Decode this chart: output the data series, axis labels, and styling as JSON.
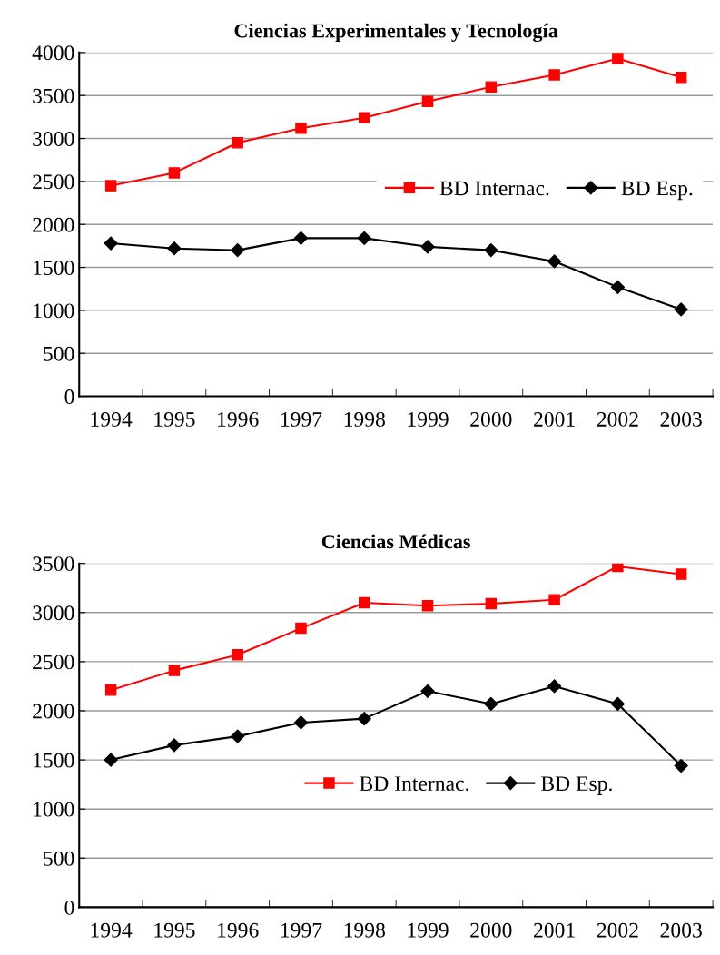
{
  "chart_data": [
    {
      "type": "line",
      "title": "Ciencias Experimentales y Tecnología",
      "categories": [
        "1994",
        "1995",
        "1996",
        "1997",
        "1998",
        "1999",
        "2000",
        "2001",
        "2002",
        "2003"
      ],
      "ylim": [
        0,
        4000
      ],
      "yticks": [
        0,
        500,
        1000,
        1500,
        2000,
        2500,
        3000,
        3500,
        4000
      ],
      "grid": "y",
      "legend": "right",
      "series": [
        {
          "name": "BD Internac.",
          "color": "#ff0000",
          "marker": "square",
          "values": [
            2450,
            2600,
            2950,
            3120,
            3240,
            3430,
            3600,
            3740,
            3930,
            3710
          ]
        },
        {
          "name": "BD Esp.",
          "color": "#000000",
          "marker": "diamond",
          "values": [
            1780,
            1720,
            1700,
            1840,
            1840,
            1740,
            1700,
            1570,
            1270,
            1010
          ]
        }
      ]
    },
    {
      "type": "line",
      "title": "Ciencias Médicas",
      "categories": [
        "1994",
        "1995",
        "1996",
        "1997",
        "1998",
        "1999",
        "2000",
        "2001",
        "2002",
        "2003"
      ],
      "ylim": [
        0,
        3500
      ],
      "yticks": [
        0,
        500,
        1000,
        1500,
        2000,
        2500,
        3000,
        3500
      ],
      "grid": "y",
      "legend": "bottom",
      "series": [
        {
          "name": "BD Internac.",
          "color": "#ff0000",
          "marker": "square",
          "values": [
            2210,
            2410,
            2570,
            2840,
            3100,
            3070,
            3090,
            3130,
            3470,
            3390
          ]
        },
        {
          "name": "BD Esp.",
          "color": "#000000",
          "marker": "diamond",
          "values": [
            1500,
            1650,
            1740,
            1880,
            1920,
            2200,
            2070,
            2250,
            2070,
            1440
          ]
        }
      ]
    }
  ]
}
